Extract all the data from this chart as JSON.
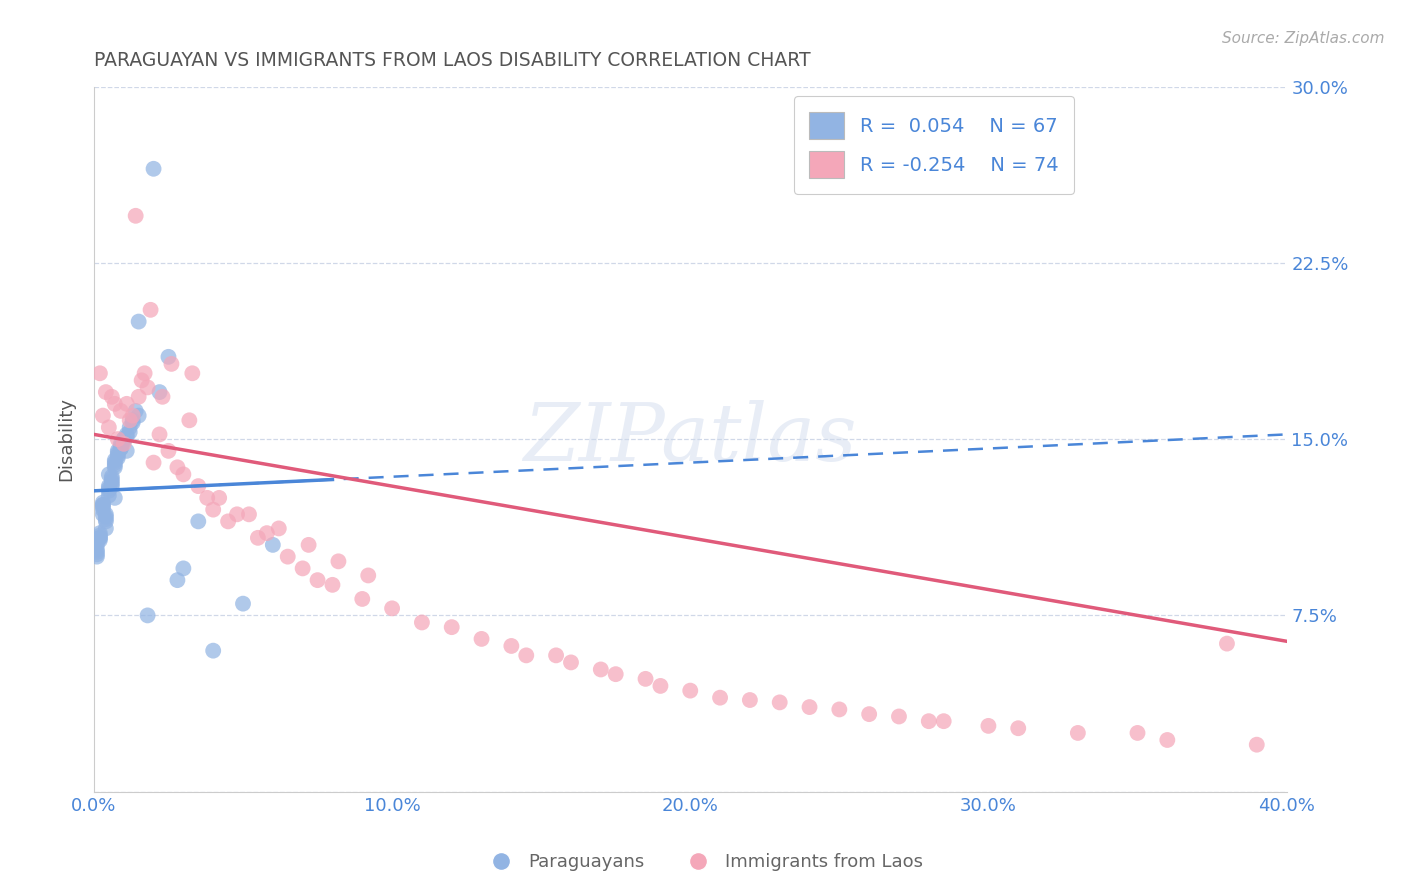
{
  "title": "PARAGUAYAN VS IMMIGRANTS FROM LAOS DISABILITY CORRELATION CHART",
  "source": "Source: ZipAtlas.com",
  "ylabel": "Disability",
  "xlabel": "",
  "xlim": [
    0.0,
    0.4
  ],
  "ylim": [
    0.0,
    0.3
  ],
  "xtick_labels": [
    "0.0%",
    "10.0%",
    "20.0%",
    "30.0%",
    "40.0%"
  ],
  "xtick_vals": [
    0.0,
    0.1,
    0.2,
    0.3,
    0.4
  ],
  "ytick_labels": [
    "",
    "7.5%",
    "15.0%",
    "22.5%",
    "30.0%"
  ],
  "ytick_vals": [
    0.0,
    0.075,
    0.15,
    0.225,
    0.3
  ],
  "legend_labels": [
    "Paraguayans",
    "Immigrants from Laos"
  ],
  "blue_color": "#92b4e3",
  "pink_color": "#f4a7b9",
  "blue_line_color": "#4a86d8",
  "pink_line_color": "#e05a7a",
  "blue_line_y0": 0.128,
  "blue_line_y1": 0.152,
  "pink_line_y0": 0.152,
  "pink_line_y1": 0.064,
  "watermark_text": "ZIPatlas",
  "title_color": "#555555",
  "axis_label_color": "#555555",
  "tick_label_color": "#4a86d8",
  "grid_color": "#d0d8e8",
  "legend_text_color": "#4a86d8",
  "background_color": "#ffffff",
  "source_color": "#aaaaaa",
  "blue_scatter_x": [
    0.005,
    0.003,
    0.008,
    0.012,
    0.007,
    0.002,
    0.015,
    0.004,
    0.006,
    0.001,
    0.009,
    0.011,
    0.003,
    0.007,
    0.005,
    0.013,
    0.002,
    0.008,
    0.004,
    0.01,
    0.001,
    0.006,
    0.003,
    0.009,
    0.005,
    0.014,
    0.002,
    0.007,
    0.004,
    0.011,
    0.001,
    0.006,
    0.012,
    0.003,
    0.008,
    0.005,
    0.01,
    0.002,
    0.007,
    0.004,
    0.009,
    0.001,
    0.013,
    0.006,
    0.003,
    0.008,
    0.005,
    0.011,
    0.002,
    0.007,
    0.004,
    0.01,
    0.001,
    0.006,
    0.003,
    0.009,
    0.02,
    0.015,
    0.025,
    0.018,
    0.03,
    0.022,
    0.035,
    0.028,
    0.04,
    0.05,
    0.06
  ],
  "blue_scatter_y": [
    0.135,
    0.118,
    0.142,
    0.155,
    0.125,
    0.108,
    0.16,
    0.112,
    0.13,
    0.105,
    0.148,
    0.145,
    0.122,
    0.138,
    0.128,
    0.158,
    0.11,
    0.143,
    0.115,
    0.15,
    0.102,
    0.132,
    0.12,
    0.146,
    0.126,
    0.162,
    0.108,
    0.14,
    0.118,
    0.152,
    0.1,
    0.134,
    0.153,
    0.122,
    0.145,
    0.13,
    0.15,
    0.109,
    0.139,
    0.117,
    0.147,
    0.103,
    0.157,
    0.133,
    0.123,
    0.144,
    0.129,
    0.151,
    0.107,
    0.141,
    0.116,
    0.149,
    0.101,
    0.131,
    0.121,
    0.146,
    0.265,
    0.2,
    0.185,
    0.075,
    0.095,
    0.17,
    0.115,
    0.09,
    0.06,
    0.08,
    0.105
  ],
  "pink_scatter_x": [
    0.005,
    0.01,
    0.003,
    0.008,
    0.015,
    0.02,
    0.007,
    0.012,
    0.025,
    0.018,
    0.03,
    0.004,
    0.009,
    0.022,
    0.035,
    0.016,
    0.028,
    0.006,
    0.013,
    0.04,
    0.045,
    0.055,
    0.002,
    0.011,
    0.065,
    0.038,
    0.07,
    0.08,
    0.017,
    0.023,
    0.032,
    0.048,
    0.058,
    0.075,
    0.09,
    0.1,
    0.11,
    0.13,
    0.145,
    0.16,
    0.175,
    0.19,
    0.21,
    0.23,
    0.25,
    0.27,
    0.285,
    0.3,
    0.35,
    0.38,
    0.042,
    0.052,
    0.062,
    0.072,
    0.082,
    0.092,
    0.12,
    0.14,
    0.155,
    0.17,
    0.185,
    0.2,
    0.22,
    0.24,
    0.26,
    0.28,
    0.31,
    0.33,
    0.36,
    0.39,
    0.014,
    0.019,
    0.026,
    0.033
  ],
  "pink_scatter_y": [
    0.155,
    0.148,
    0.16,
    0.15,
    0.168,
    0.14,
    0.165,
    0.158,
    0.145,
    0.172,
    0.135,
    0.17,
    0.162,
    0.152,
    0.13,
    0.175,
    0.138,
    0.168,
    0.16,
    0.12,
    0.115,
    0.108,
    0.178,
    0.165,
    0.1,
    0.125,
    0.095,
    0.088,
    0.178,
    0.168,
    0.158,
    0.118,
    0.11,
    0.09,
    0.082,
    0.078,
    0.072,
    0.065,
    0.058,
    0.055,
    0.05,
    0.045,
    0.04,
    0.038,
    0.035,
    0.032,
    0.03,
    0.028,
    0.025,
    0.063,
    0.125,
    0.118,
    0.112,
    0.105,
    0.098,
    0.092,
    0.07,
    0.062,
    0.058,
    0.052,
    0.048,
    0.043,
    0.039,
    0.036,
    0.033,
    0.03,
    0.027,
    0.025,
    0.022,
    0.02,
    0.245,
    0.205,
    0.182,
    0.178
  ]
}
